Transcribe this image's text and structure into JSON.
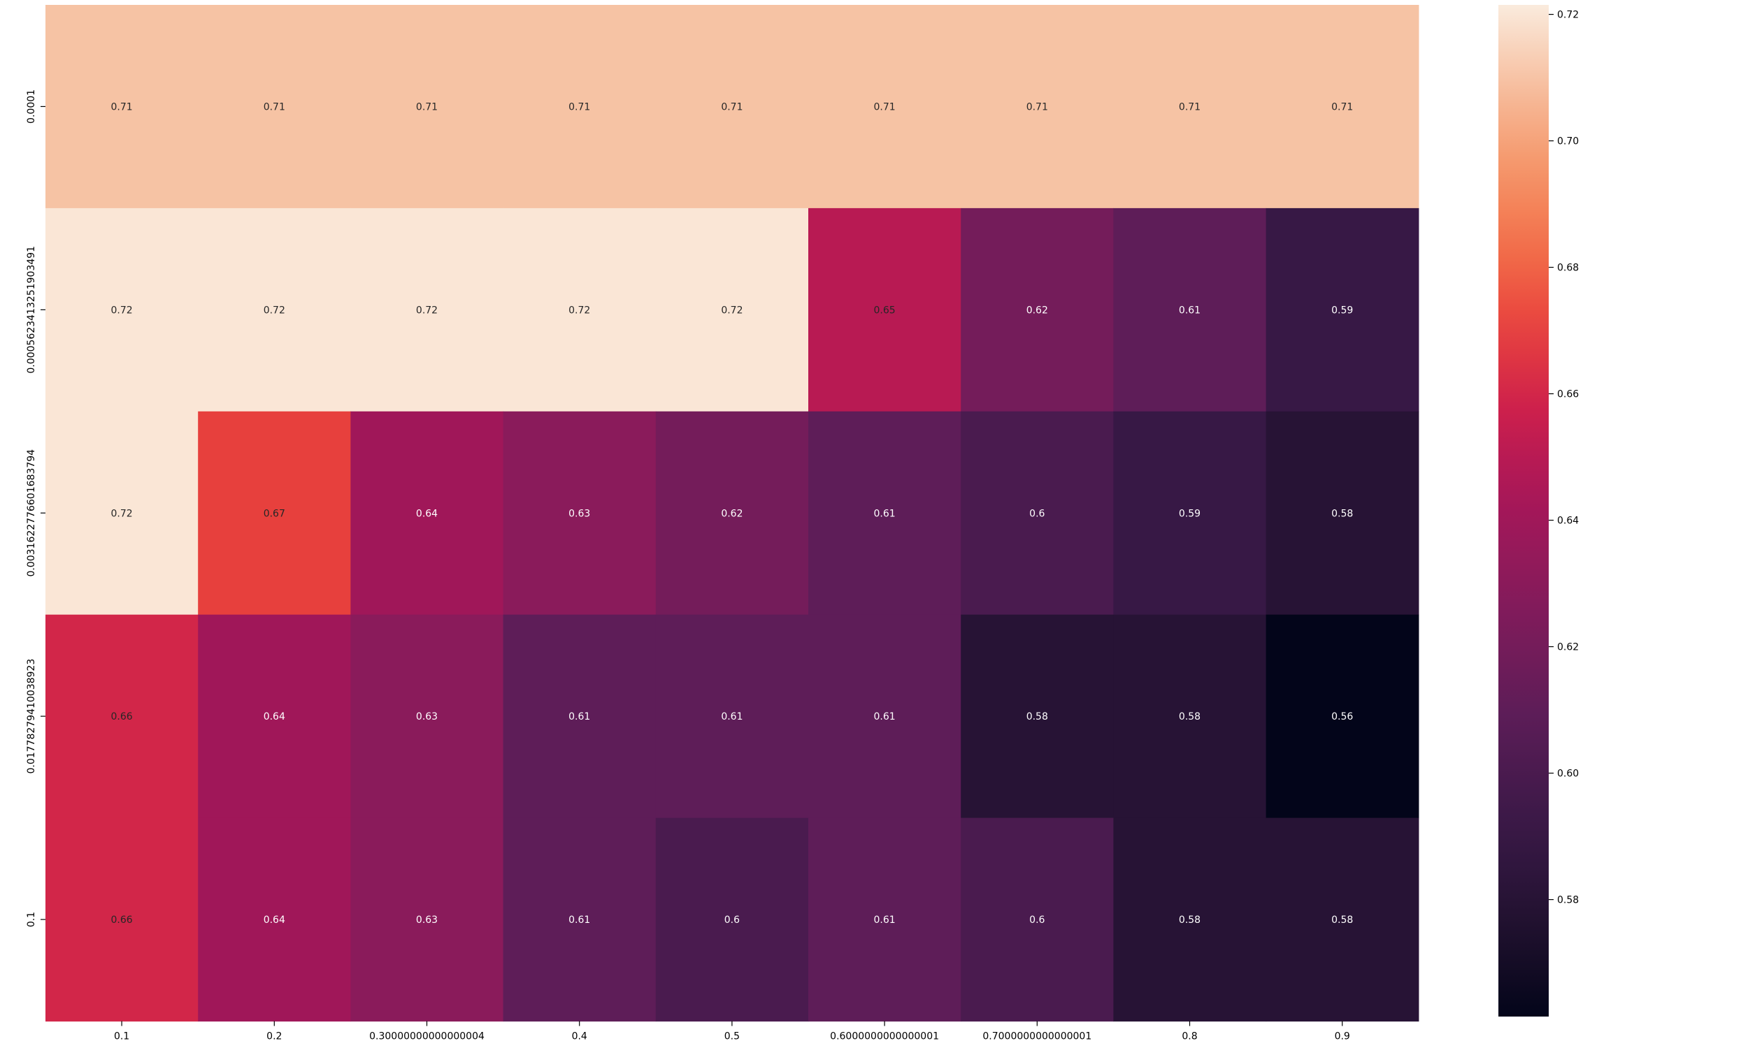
{
  "chart_data": {
    "type": "heatmap",
    "x_categories": [
      "0.1",
      "0.2",
      "0.30000000000000004",
      "0.4",
      "0.5",
      "0.6000000000000001",
      "0.7000000000000001",
      "0.8",
      "0.9"
    ],
    "y_categories": [
      "0.0001",
      "0.0005623413251903491",
      "0.0031622776601683794",
      "0.01778279410038923",
      "0.1"
    ],
    "values": [
      [
        0.71,
        0.71,
        0.71,
        0.71,
        0.71,
        0.71,
        0.71,
        0.71,
        0.71
      ],
      [
        0.72,
        0.72,
        0.72,
        0.72,
        0.72,
        0.65,
        0.62,
        0.61,
        0.59
      ],
      [
        0.72,
        0.67,
        0.64,
        0.63,
        0.62,
        0.61,
        0.6,
        0.59,
        0.58
      ],
      [
        0.66,
        0.64,
        0.63,
        0.61,
        0.61,
        0.61,
        0.58,
        0.58,
        0.56
      ],
      [
        0.66,
        0.64,
        0.63,
        0.61,
        0.6,
        0.61,
        0.6,
        0.58,
        0.58
      ]
    ],
    "annotations": [
      [
        "0.71",
        "0.71",
        "0.71",
        "0.71",
        "0.71",
        "0.71",
        "0.71",
        "0.71",
        "0.71"
      ],
      [
        "0.72",
        "0.72",
        "0.72",
        "0.72",
        "0.72",
        "0.65",
        "0.62",
        "0.61",
        "0.59"
      ],
      [
        "0.72",
        "0.67",
        "0.64",
        "0.63",
        "0.62",
        "0.61",
        "0.6",
        "0.59",
        "0.58"
      ],
      [
        "0.66",
        "0.64",
        "0.63",
        "0.61",
        "0.61",
        "0.61",
        "0.58",
        "0.58",
        "0.56"
      ],
      [
        "0.66",
        "0.64",
        "0.63",
        "0.61",
        "0.6",
        "0.61",
        "0.6",
        "0.58",
        "0.58"
      ]
    ],
    "colormap": "rocket",
    "colorbar": {
      "range": [
        0.5615,
        0.7215
      ],
      "ticks": [
        0.58,
        0.6,
        0.62,
        0.64,
        0.66,
        0.68,
        0.7,
        0.72
      ],
      "tick_labels": [
        "0.58",
        "0.60",
        "0.62",
        "0.64",
        "0.66",
        "0.68",
        "0.70",
        "0.72"
      ]
    },
    "title": "",
    "xlabel": "",
    "ylabel": "",
    "grid": false,
    "legend": "colorbar-right"
  }
}
